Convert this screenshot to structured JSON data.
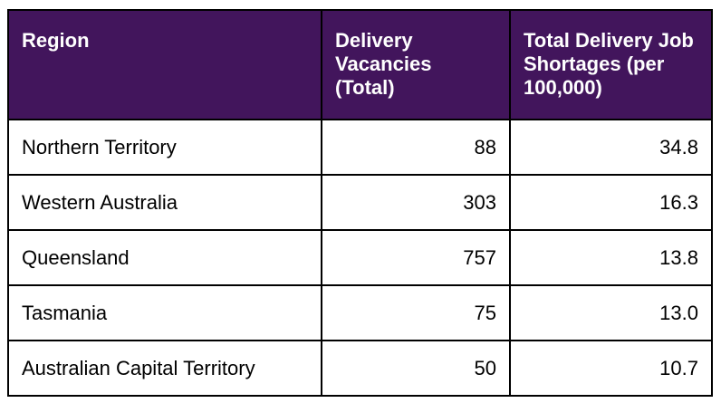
{
  "headers": [
    "Region",
    "Delivery Vacancies (Total)",
    "Total Delivery Job Shortages (per 100,000)"
  ],
  "rows": [
    {
      "region": "Northern Territory",
      "vacancies": "88",
      "shortages": "34.8"
    },
    {
      "region": "Western Australia",
      "vacancies": "303",
      "shortages": "16.3"
    },
    {
      "region": "Queensland",
      "vacancies": "757",
      "shortages": "13.8"
    },
    {
      "region": "Tasmania",
      "vacancies": "75",
      "shortages": "13.0"
    },
    {
      "region": "Australian Capital Territory",
      "vacancies": "50",
      "shortages": "10.7"
    }
  ],
  "colors": {
    "header_bg": "#42155c",
    "header_text": "#ffffff"
  }
}
